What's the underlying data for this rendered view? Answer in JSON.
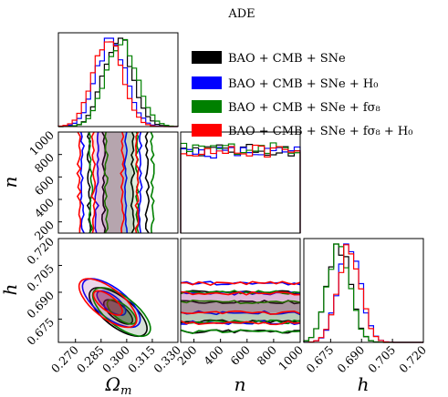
{
  "chart_data": {
    "type": "corner",
    "title": "ADE",
    "series": [
      {
        "name": "BAO + CMB + SNe",
        "color": "#000000"
      },
      {
        "name": "BAO + CMB + SNe + H₀",
        "color": "#0000ff"
      },
      {
        "name": "BAO + CMB + SNe + fσ₈",
        "color": "#008000"
      },
      {
        "name": "BAO + CMB + SNe + fσ₈ + H₀",
        "color": "#ff0000"
      }
    ],
    "parameters": [
      {
        "symbol": "Ωm",
        "label_main": "Ω",
        "label_sub": "m",
        "range": [
          0.26,
          0.33
        ],
        "ticks": [
          "0.270",
          "0.285",
          "0.300",
          "0.315",
          "0.330"
        ],
        "tick_values": [
          0.27,
          0.285,
          0.3,
          0.315,
          0.33
        ],
        "means": [
          0.295,
          0.291,
          0.297,
          0.289
        ],
        "sigmas": [
          0.0085,
          0.0085,
          0.009,
          0.0085
        ]
      },
      {
        "symbol": "n",
        "label_main": "n",
        "label_sub": "",
        "range": [
          100,
          1000
        ],
        "ticks": [
          "200",
          "400",
          "600",
          "800",
          "1000"
        ],
        "tick_values": [
          200,
          400,
          600,
          800,
          1000
        ],
        "uniform_levels": [
          0.82,
          0.8,
          0.84,
          0.81
        ]
      },
      {
        "symbol": "h",
        "label_main": "h",
        "label_sub": "",
        "range": [
          0.662,
          0.72
        ],
        "ticks": [
          "0.675",
          "0.690",
          "0.705",
          "0.720"
        ],
        "tick_values": [
          0.675,
          0.69,
          0.705,
          0.72
        ],
        "means": [
          0.679,
          0.684,
          0.679,
          0.684
        ],
        "sigmas": [
          0.0055,
          0.0055,
          0.0055,
          0.0055
        ]
      }
    ],
    "diag_ylim_label": {
      "n": [
        "200",
        "400",
        "600",
        "800",
        "1000"
      ],
      "h": [
        "0.675",
        "0.690",
        "0.705",
        "0.720"
      ]
    },
    "grid": false,
    "legend_position": "top-right"
  }
}
